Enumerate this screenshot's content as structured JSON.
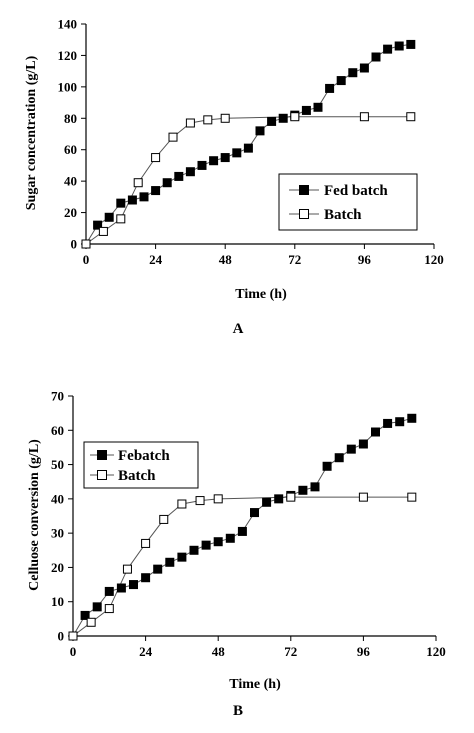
{
  "chart_data": [
    {
      "type": "line",
      "panel_label": "A",
      "xlabel": "Time (h)",
      "ylabel": "Sugar concentration (g/L)",
      "xlim": [
        0,
        120
      ],
      "ylim": [
        0,
        140
      ],
      "xticks": [
        "0",
        "24",
        "48",
        "72",
        "96",
        "120"
      ],
      "yticks": [
        "0",
        "20",
        "40",
        "60",
        "80",
        "100",
        "120",
        "140"
      ],
      "legend_position": "center-right",
      "grid": false,
      "series": [
        {
          "name": "Fed batch",
          "marker": "filled-square",
          "x": [
            0,
            4,
            8,
            12,
            16,
            20,
            24,
            28,
            32,
            36,
            40,
            44,
            48,
            52,
            56,
            60,
            64,
            68,
            72,
            76,
            80,
            84,
            88,
            92,
            96,
            100,
            104,
            108,
            112
          ],
          "y": [
            0,
            12,
            17,
            26,
            28,
            30,
            34,
            39,
            43,
            46,
            50,
            53,
            55,
            58,
            61,
            72,
            78,
            80,
            82,
            85,
            87,
            99,
            104,
            109,
            112,
            119,
            124,
            126,
            127
          ]
        },
        {
          "name": "Batch",
          "marker": "open-square",
          "x": [
            0,
            6,
            12,
            18,
            24,
            30,
            36,
            42,
            48,
            72,
            96,
            112
          ],
          "y": [
            0,
            8,
            16,
            39,
            55,
            68,
            77,
            79,
            80,
            81,
            81,
            81
          ]
        }
      ]
    },
    {
      "type": "line",
      "panel_label": "B",
      "xlabel": "Time (h)",
      "ylabel": "Celluose conversion (g/L)",
      "xlim": [
        0,
        120
      ],
      "ylim": [
        0,
        70
      ],
      "xticks": [
        "0",
        "24",
        "48",
        "72",
        "96",
        "120"
      ],
      "yticks": [
        "0",
        "10",
        "20",
        "30",
        "40",
        "50",
        "60",
        "70"
      ],
      "legend_position": "top-left",
      "grid": false,
      "series": [
        {
          "name": "Febatch",
          "marker": "filled-square",
          "x": [
            0,
            4,
            8,
            12,
            16,
            20,
            24,
            28,
            32,
            36,
            40,
            44,
            48,
            52,
            56,
            60,
            64,
            68,
            72,
            76,
            80,
            84,
            88,
            92,
            96,
            100,
            104,
            108,
            112
          ],
          "y": [
            0,
            6,
            8.5,
            13,
            14,
            15,
            17,
            19.5,
            21.5,
            23,
            25,
            26.5,
            27.5,
            28.5,
            30.5,
            36,
            39,
            40,
            41,
            42.5,
            43.5,
            49.5,
            52,
            54.5,
            56,
            59.5,
            62,
            62.5,
            63.5
          ]
        },
        {
          "name": "Batch",
          "marker": "open-square",
          "x": [
            0,
            6,
            12,
            18,
            24,
            30,
            36,
            42,
            48,
            72,
            96,
            112
          ],
          "y": [
            0,
            4,
            8,
            19.5,
            27,
            34,
            38.5,
            39.5,
            40,
            40.5,
            40.5,
            40.5
          ]
        }
      ]
    }
  ]
}
